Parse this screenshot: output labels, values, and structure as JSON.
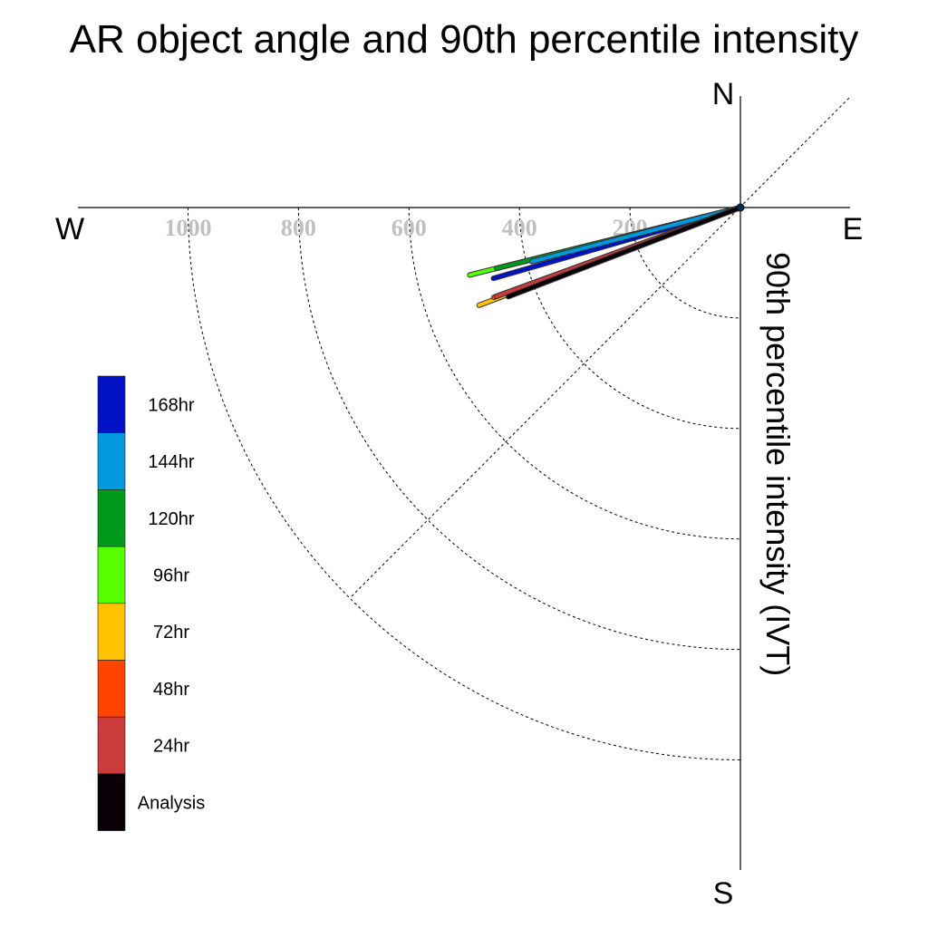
{
  "chart_data": {
    "type": "polar-vector",
    "title": "AR object angle and 90th percentile intensity",
    "ylabel": "90th percentile intensity (IVT)",
    "compass": {
      "north": "N",
      "south": "S",
      "east": "E",
      "west": "W"
    },
    "radial_ticks": [
      "1000",
      "800",
      "600",
      "400",
      "200"
    ],
    "radial_tick_values": [
      1000,
      800,
      600,
      400,
      200
    ],
    "radial_range": [
      0,
      1200
    ],
    "grid": true,
    "legend_position": "left",
    "series": [
      {
        "name": "Analysis",
        "color": "#0a0008",
        "magnitude": 450,
        "angle_deg": 201
      },
      {
        "name": "24hr",
        "color": "#cc3b3b",
        "magnitude": 470,
        "angle_deg": 200
      },
      {
        "name": "48hr",
        "color": "#ff4400",
        "magnitude": 475,
        "angle_deg": 200
      },
      {
        "name": "72hr",
        "color": "#ffc200",
        "magnitude": 505,
        "angle_deg": 200.5
      },
      {
        "name": "96hr",
        "color": "#55ff00",
        "magnitude": 505,
        "angle_deg": 194
      },
      {
        "name": "120hr",
        "color": "#009a1a",
        "magnitude": 455,
        "angle_deg": 194
      },
      {
        "name": "144hr",
        "color": "#0099dd",
        "magnitude": 390,
        "angle_deg": 194.5
      },
      {
        "name": "168hr",
        "color": "#0012c4",
        "magnitude": 465,
        "angle_deg": 196
      }
    ],
    "legend_order": [
      "168hr",
      "144hr",
      "120hr",
      "96hr",
      "72hr",
      "48hr",
      "24hr",
      "Analysis"
    ]
  }
}
